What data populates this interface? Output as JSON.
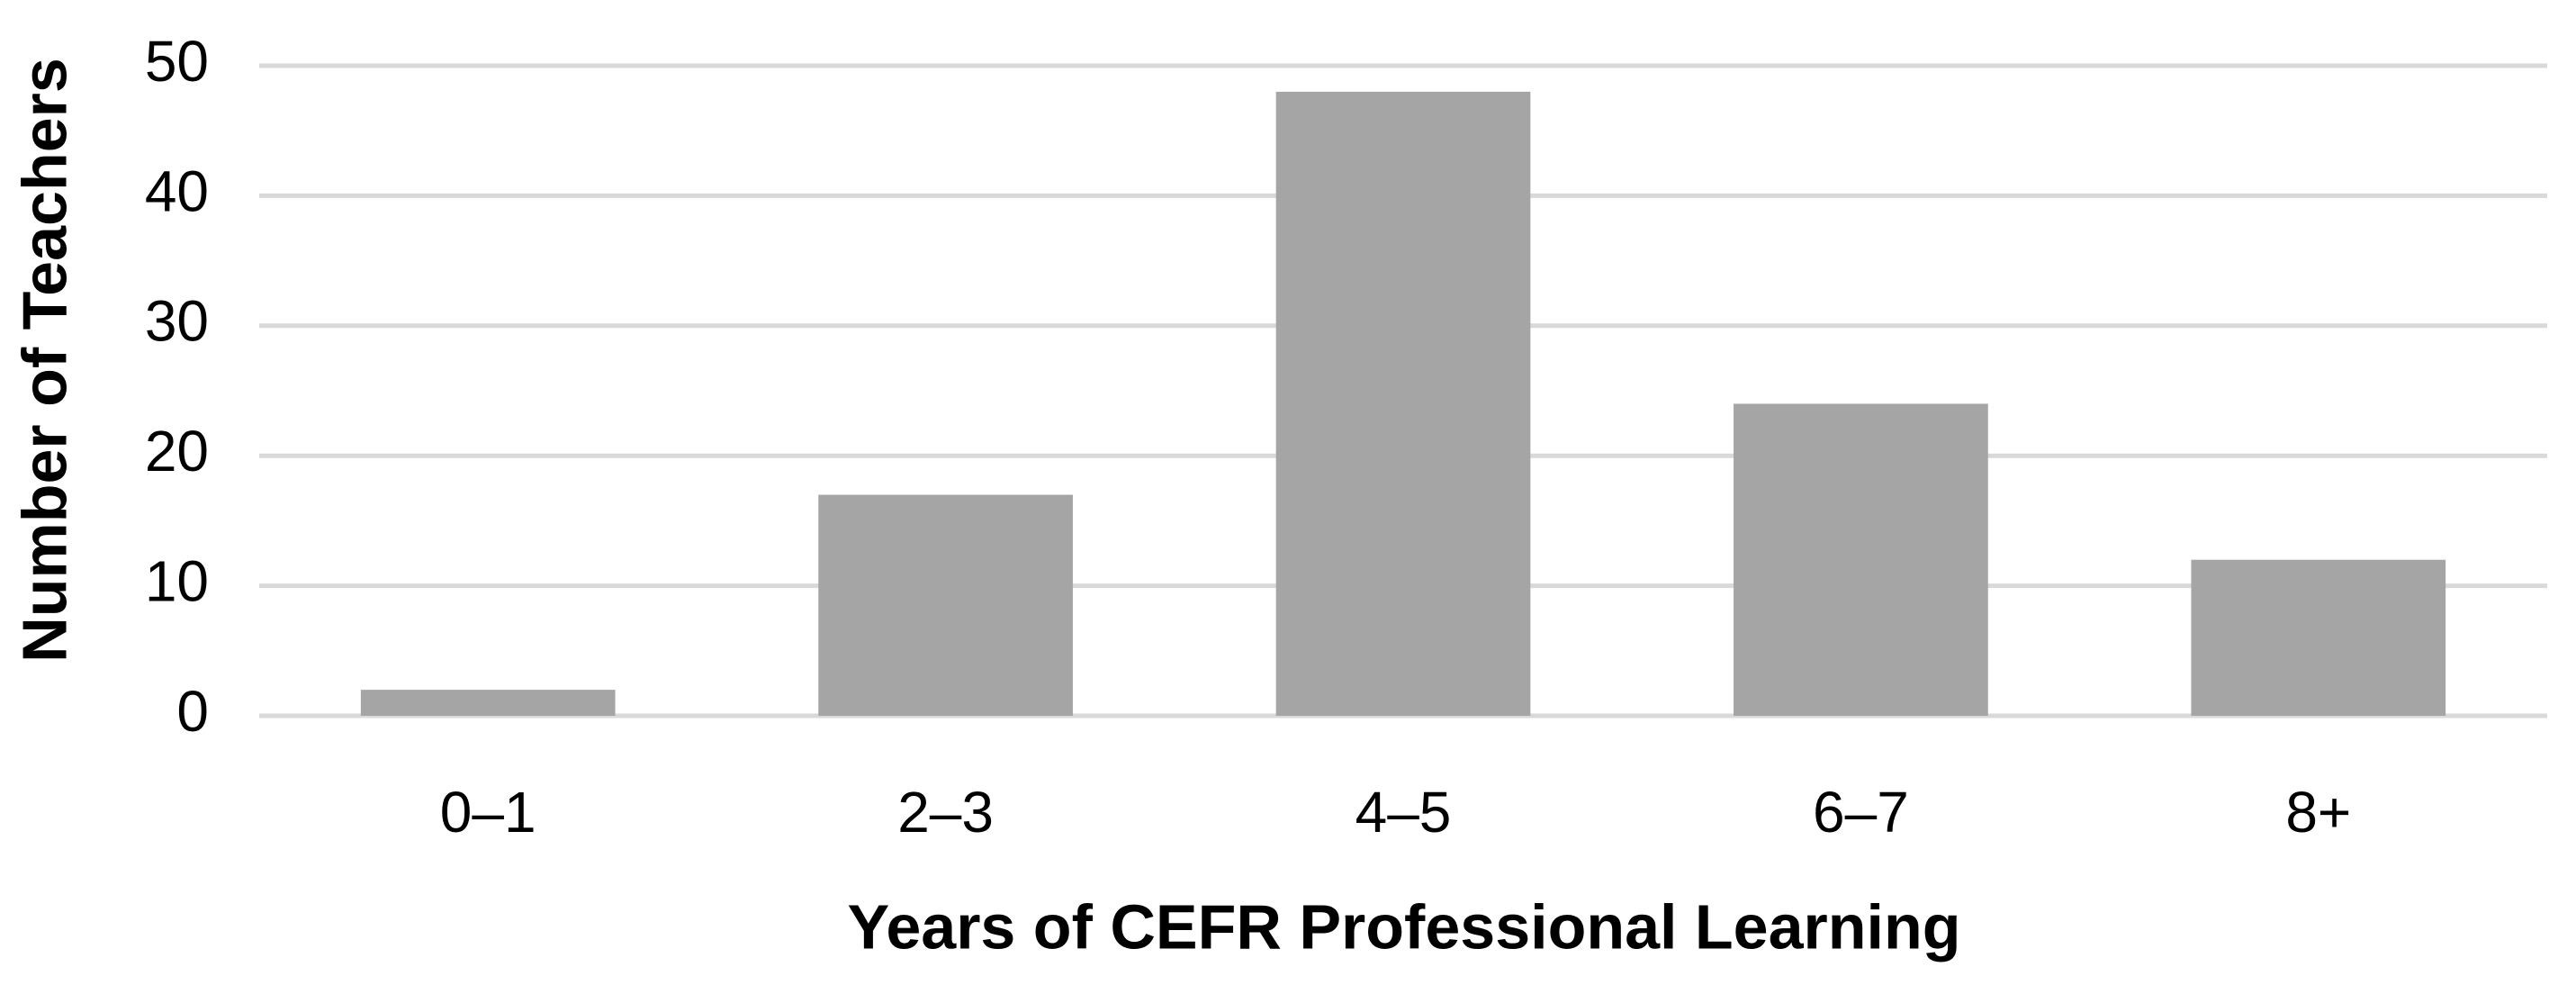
{
  "chart_data": {
    "type": "bar",
    "x_label": "Years of CEFR Professional Learning",
    "y_label": "Number of Teachers",
    "categories": [
      "0–1",
      "2–3",
      "4–5",
      "6–7",
      "8+"
    ],
    "values": [
      2,
      17,
      48,
      24,
      12
    ],
    "color": "#a5a5a5",
    "ylim": [
      0,
      50
    ],
    "yticks": [
      0,
      10,
      20,
      30,
      40,
      50
    ],
    "grid": true
  }
}
